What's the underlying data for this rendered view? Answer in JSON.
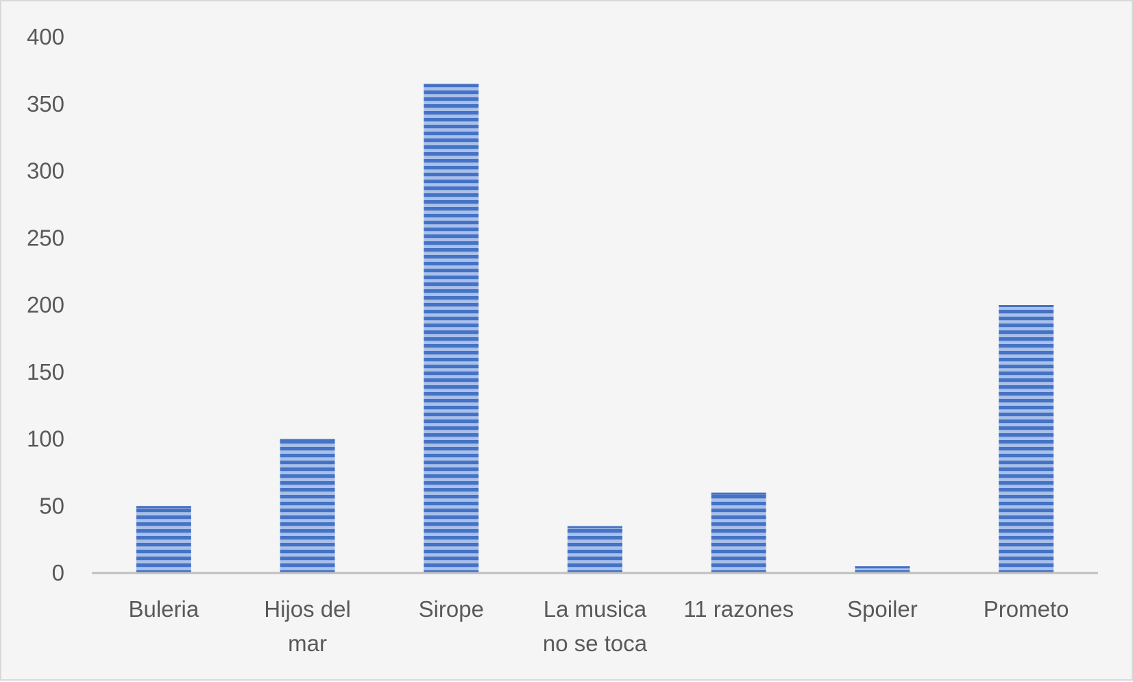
{
  "chart_data": {
    "type": "bar",
    "title": "",
    "xlabel": "",
    "ylabel": "",
    "categories": [
      [
        "Buleria"
      ],
      [
        "Hijos del",
        "mar"
      ],
      [
        "Sirope"
      ],
      [
        "La musica",
        "no se toca"
      ],
      [
        "11 razones"
      ],
      [
        "Spoiler"
      ],
      [
        "Prometo"
      ]
    ],
    "values": [
      50,
      100,
      365,
      35,
      60,
      5,
      200
    ],
    "ylim": [
      0,
      400
    ],
    "yticks": [
      "0",
      "50",
      "100",
      "150",
      "200",
      "250",
      "300",
      "350",
      "400"
    ],
    "grid": false,
    "legend": "none",
    "colors": {
      "bar_fill": "#4472c4",
      "bar_light": "#a9c0ea",
      "axis": "#bfbfbf",
      "text": "#595959",
      "background": "#f5f5f5"
    }
  }
}
